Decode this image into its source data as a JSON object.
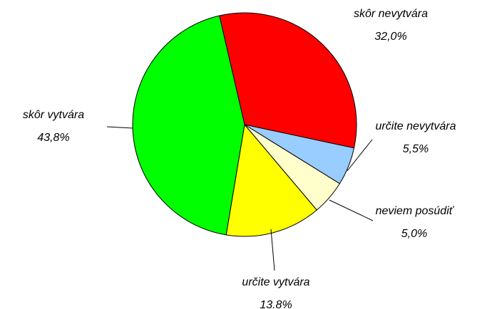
{
  "chart_data": {
    "type": "pie",
    "categories": [
      "skôr nevytvára",
      "určite nevytvára",
      "neviem posúdiť",
      "určite vytvára",
      "skôr vytvára"
    ],
    "values": [
      32.0,
      5.5,
      5.0,
      13.8,
      43.8
    ],
    "value_labels": [
      "32,0%",
      "5,5%",
      "5,0%",
      "13.8%",
      "43,8%"
    ],
    "colors": [
      "#ff0000",
      "#99ccff",
      "#ffffcc",
      "#ffff00",
      "#00ff00"
    ]
  }
}
